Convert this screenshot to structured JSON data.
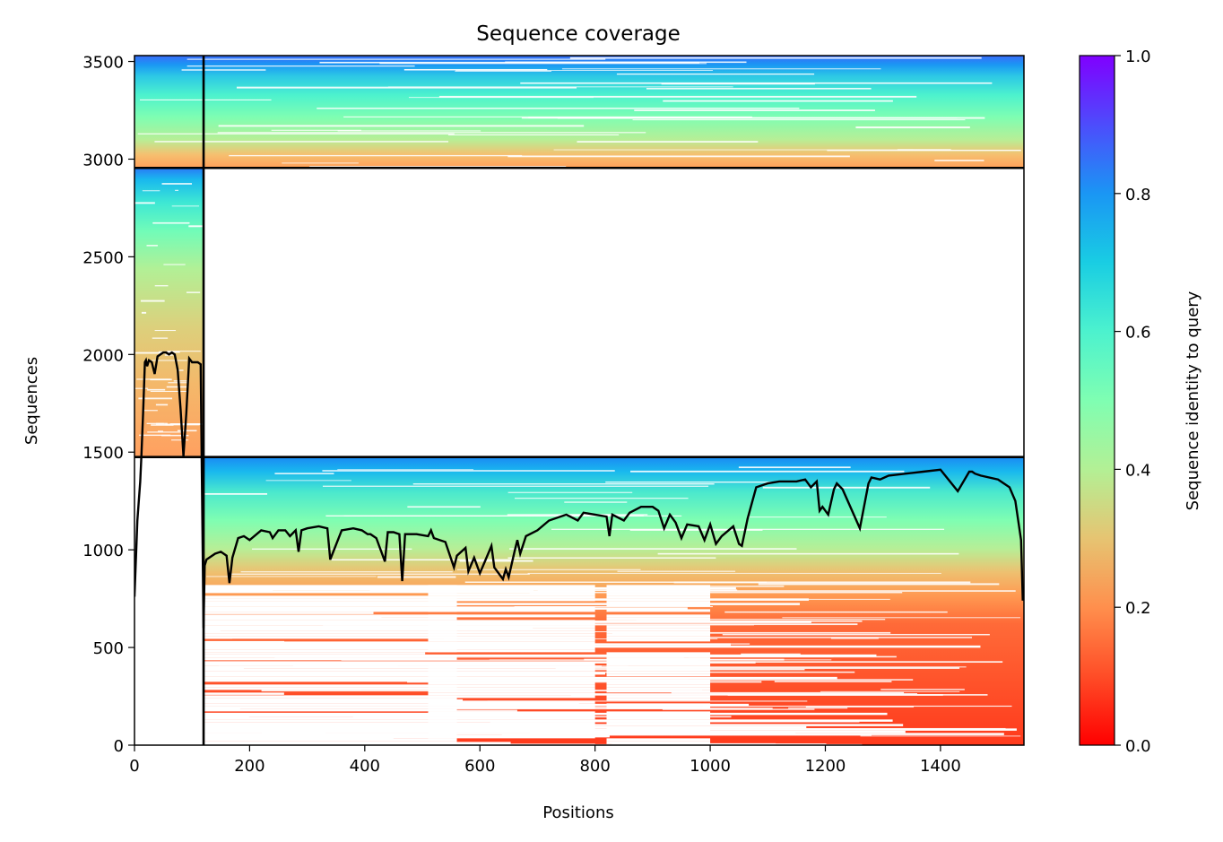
{
  "chart_data": {
    "type": "heatmap",
    "title": "Sequence coverage",
    "xlabel": "Positions",
    "ylabel": "Sequences",
    "xlim": [
      0,
      1545
    ],
    "ylim": [
      0,
      3530
    ],
    "xticks": [
      0,
      200,
      400,
      600,
      800,
      1000,
      1200,
      1400
    ],
    "xtick_labels": [
      "0",
      "200",
      "400",
      "600",
      "800",
      "1000",
      "1200",
      "1400"
    ],
    "yticks": [
      0,
      500,
      1000,
      1500,
      2000,
      2500,
      3000,
      3500
    ],
    "ytick_labels": [
      "0",
      "500",
      "1000",
      "1500",
      "2000",
      "2500",
      "3000",
      "3500"
    ],
    "colorbar": {
      "label": "Sequence identity to query",
      "colormap": "rainbow_r",
      "range": [
        0.0,
        1.0
      ],
      "ticks": [
        0.0,
        0.2,
        0.4,
        0.6,
        0.8,
        1.0
      ],
      "tick_labels": [
        "0.0",
        "0.2",
        "0.4",
        "0.6",
        "0.8",
        "1.0"
      ]
    },
    "chain_boundaries": {
      "positions": [
        120
      ],
      "sequence_counts": [
        1475,
        2955
      ],
      "note_colors": {
        "boundary_line": "#000000",
        "coverage_line": "#000000"
      }
    },
    "blocks": [
      {
        "x": [
          0,
          120
        ],
        "y": [
          1475,
          2955
        ],
        "identity_top": 0.85,
        "identity_bottom": 0.22
      },
      {
        "x": [
          120,
          1545
        ],
        "y": [
          0,
          1475
        ],
        "identity_top": 0.85,
        "identity_bottom": 0.04
      },
      {
        "x": [
          0,
          1545
        ],
        "y": [
          2955,
          3530
        ],
        "identity_top": 0.85,
        "identity_bottom": 0.22
      }
    ],
    "coverage_line": {
      "name": "coverage",
      "x": [
        0,
        5,
        10,
        12,
        15,
        18,
        20,
        22,
        25,
        30,
        35,
        40,
        45,
        50,
        55,
        60,
        65,
        70,
        75,
        80,
        85,
        90,
        95,
        100,
        105,
        110,
        115,
        118,
        120,
        122,
        125,
        140,
        150,
        160,
        165,
        170,
        180,
        190,
        200,
        220,
        235,
        240,
        250,
        262,
        270,
        280,
        285,
        290,
        300,
        320,
        335,
        340,
        360,
        380,
        395,
        405,
        410,
        420,
        435,
        440,
        450,
        460,
        465,
        470,
        490,
        510,
        515,
        520,
        540,
        555,
        560,
        575,
        580,
        590,
        600,
        610,
        620,
        625,
        640,
        645,
        650,
        660,
        665,
        670,
        680,
        700,
        720,
        750,
        770,
        780,
        800,
        820,
        825,
        830,
        850,
        860,
        880,
        900,
        910,
        920,
        930,
        940,
        950,
        960,
        980,
        990,
        1000,
        1010,
        1020,
        1040,
        1050,
        1055,
        1065,
        1080,
        1100,
        1120,
        1150,
        1165,
        1175,
        1185,
        1190,
        1195,
        1205,
        1215,
        1220,
        1230,
        1260,
        1275,
        1280,
        1295,
        1310,
        1340,
        1370,
        1400,
        1430,
        1450,
        1455,
        1460,
        1470,
        1500,
        1520,
        1530,
        1540,
        1543,
        1545
      ],
      "y": [
        760,
        1150,
        1350,
        1480,
        1700,
        1960,
        1970,
        1940,
        1970,
        1960,
        1900,
        1990,
        2000,
        2010,
        2010,
        2000,
        2010,
        2000,
        1920,
        1720,
        1480,
        1700,
        1980,
        1960,
        1960,
        1960,
        1950,
        1100,
        600,
        920,
        950,
        980,
        990,
        970,
        830,
        960,
        1060,
        1070,
        1050,
        1100,
        1090,
        1060,
        1100,
        1100,
        1070,
        1100,
        990,
        1100,
        1110,
        1120,
        1110,
        950,
        1100,
        1110,
        1100,
        1080,
        1080,
        1060,
        940,
        1090,
        1090,
        1080,
        840,
        1080,
        1080,
        1070,
        1100,
        1060,
        1040,
        910,
        970,
        1010,
        890,
        960,
        880,
        950,
        1020,
        910,
        850,
        900,
        860,
        990,
        1050,
        980,
        1070,
        1100,
        1150,
        1180,
        1150,
        1190,
        1180,
        1170,
        1070,
        1180,
        1150,
        1190,
        1220,
        1220,
        1200,
        1110,
        1180,
        1140,
        1060,
        1130,
        1120,
        1050,
        1130,
        1030,
        1070,
        1120,
        1030,
        1020,
        1160,
        1320,
        1340,
        1350,
        1350,
        1360,
        1320,
        1350,
        1200,
        1220,
        1180,
        1310,
        1340,
        1310,
        1110,
        1340,
        1370,
        1360,
        1380,
        1390,
        1400,
        1410,
        1300,
        1400,
        1400,
        1390,
        1380,
        1360,
        1320,
        1250,
        1050,
        740
      ]
    }
  }
}
